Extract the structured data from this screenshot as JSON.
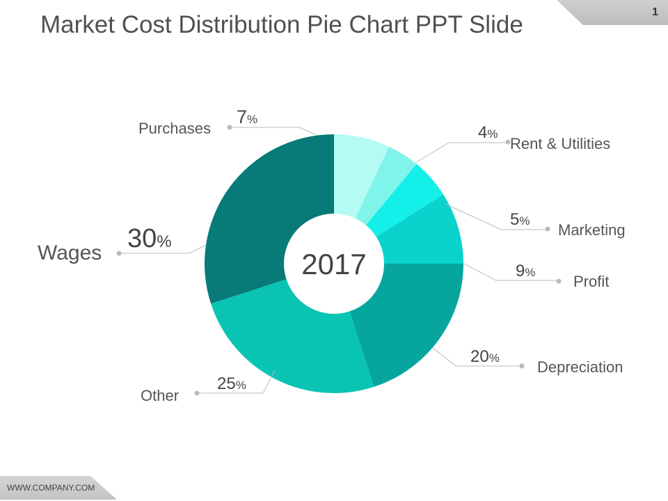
{
  "title": "Market Cost Distribution Pie Chart PPT Slide",
  "page_number": "1",
  "footer": "WWW.COMPANY.COM",
  "chart_data": {
    "type": "pie",
    "donut": true,
    "center_label": "2017",
    "categories": [
      "Purchases",
      "Rent & Utilities",
      "Marketing",
      "Profit",
      "Depreciation",
      "Other",
      "Wages"
    ],
    "values": [
      7,
      4,
      5,
      9,
      20,
      25,
      30
    ],
    "unit": "%",
    "colors": [
      "#b4fbf3",
      "#80f4ea",
      "#14efea",
      "#0ad3cd",
      "#06a69f",
      "#0ac4b3",
      "#087a77"
    ]
  }
}
